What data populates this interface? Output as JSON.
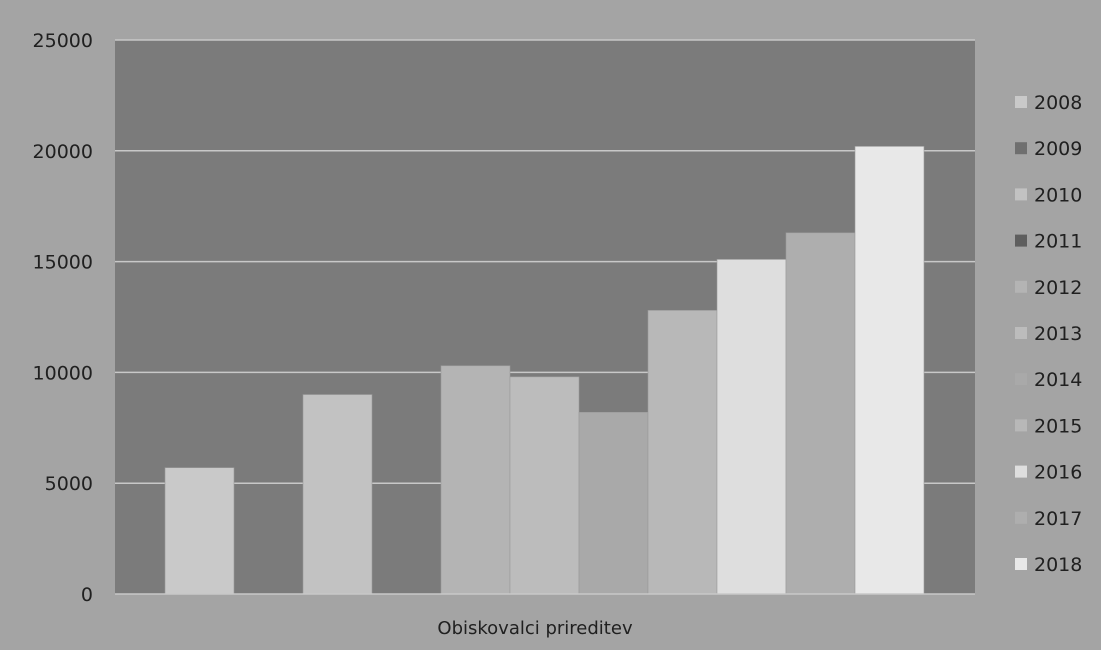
{
  "chart_data": {
    "type": "bar",
    "title": "",
    "xlabel": "",
    "ylabel": "",
    "categories": [
      "Obiskovalci prireditev"
    ],
    "ylim": [
      0,
      25000
    ],
    "yticks": [
      0,
      5000,
      10000,
      15000,
      20000,
      25000
    ],
    "grid": true,
    "legend_position": "right",
    "series": [
      {
        "name": "2008",
        "values": [
          5700
        ],
        "color": "#c9c9c9"
      },
      {
        "name": "2009",
        "values": [
          0
        ],
        "color": "#6f6f6f"
      },
      {
        "name": "2010",
        "values": [
          9000
        ],
        "color": "#c2c2c2"
      },
      {
        "name": "2011",
        "values": [
          0
        ],
        "color": "#5e5e5e"
      },
      {
        "name": "2012",
        "values": [
          10300
        ],
        "color": "#b4b4b4"
      },
      {
        "name": "2013",
        "values": [
          9800
        ],
        "color": "#bcbcbc"
      },
      {
        "name": "2014",
        "values": [
          8200
        ],
        "color": "#a9a9a9"
      },
      {
        "name": "2015",
        "values": [
          12800
        ],
        "color": "#b8b8b8"
      },
      {
        "name": "2016",
        "values": [
          15100
        ],
        "color": "#dedede"
      },
      {
        "name": "2017",
        "values": [
          16300
        ],
        "color": "#aeaeae"
      },
      {
        "name": "2018",
        "values": [
          20200
        ],
        "color": "#e8e8e8"
      }
    ],
    "colors": {
      "plot_bg": "#7b7b7b",
      "outer_bg": "#a4a4a4",
      "gridline": "#c8c8c8",
      "text": "#202020"
    }
  }
}
